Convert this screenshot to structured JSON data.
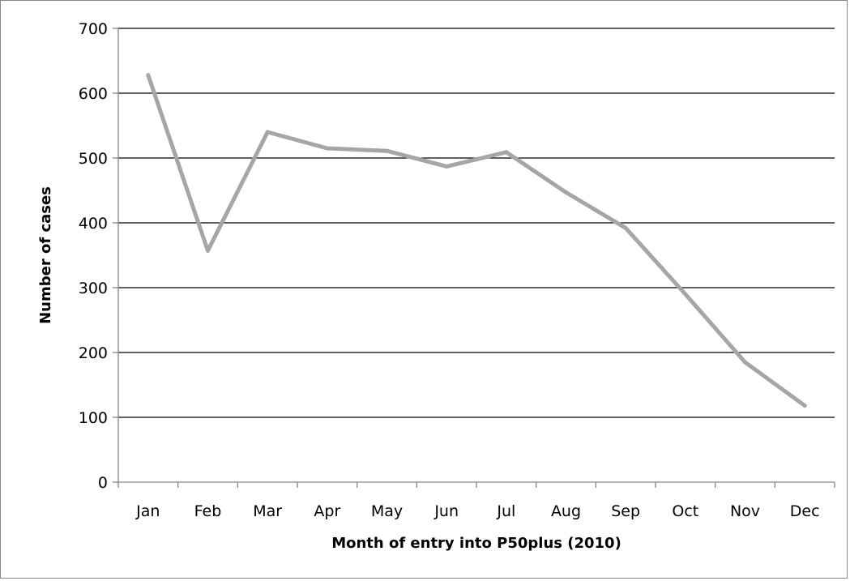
{
  "chart_data": {
    "type": "line",
    "title": "",
    "xlabel": "Month of entry into P50plus (2010)",
    "ylabel": "Number of cases",
    "categories": [
      "Jan",
      "Feb",
      "Mar",
      "Apr",
      "May",
      "Jun",
      "Jul",
      "Aug",
      "Sep",
      "Oct",
      "Nov",
      "Dec"
    ],
    "series": [
      {
        "values": [
          628,
          357,
          540,
          515,
          511,
          487,
          509,
          447,
          392,
          290,
          185,
          118
        ],
        "color": "#a6a6a6"
      }
    ],
    "ylim": [
      0,
      700
    ],
    "yticks": [
      0,
      100,
      200,
      300,
      400,
      500,
      600,
      700
    ],
    "grid": true,
    "legend": "none"
  }
}
